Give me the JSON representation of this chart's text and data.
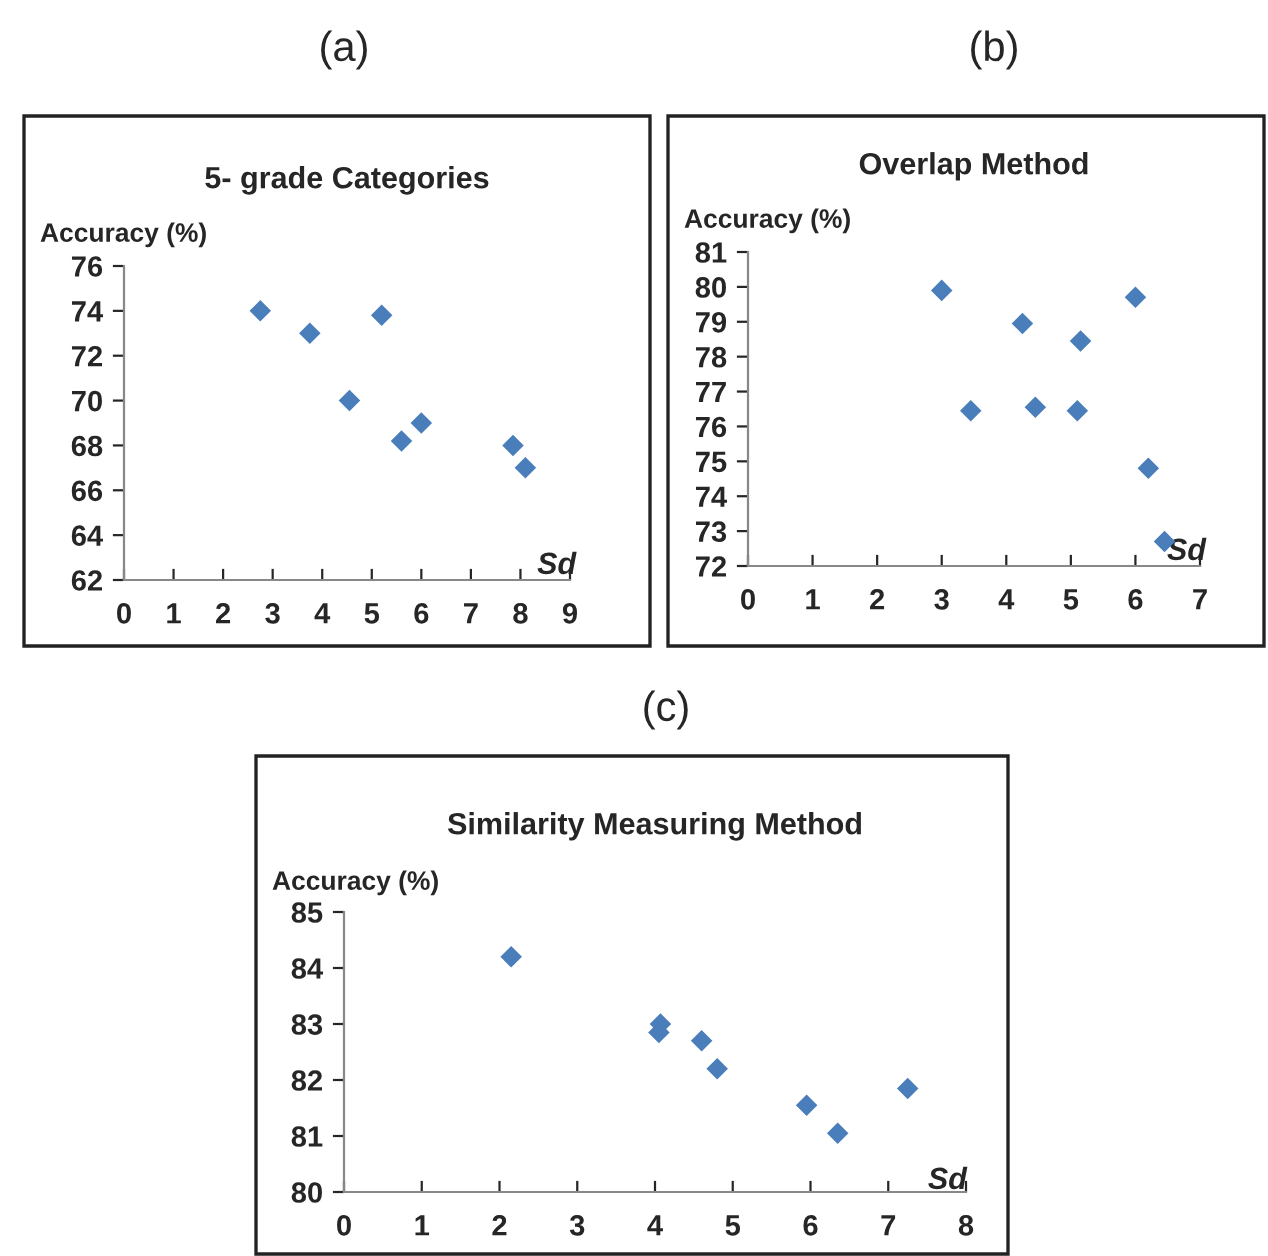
{
  "chart_data": [
    {
      "type": "scatter",
      "title": "5- grade Categories",
      "xlabel": "Sd",
      "ylabel": "Accuracy (%)",
      "annotations": [
        "(a)"
      ],
      "marker": "diamond",
      "grid": false,
      "legend": false,
      "xlim": [
        0,
        9
      ],
      "xticks": [
        0,
        1,
        2,
        3,
        4,
        5,
        6,
        7,
        8,
        9
      ],
      "ylim": [
        62,
        76
      ],
      "yticks": [
        62,
        64,
        66,
        68,
        70,
        72,
        74,
        76
      ],
      "series": [
        {
          "color": "#4a7ebb",
          "x": [
            2.75,
            3.75,
            4.55,
            5.2,
            5.6,
            6.0,
            7.85,
            8.1
          ],
          "values": [
            74.0,
            73.0,
            70.0,
            73.8,
            68.2,
            69.0,
            68.0,
            67.0
          ]
        }
      ]
    },
    {
      "type": "scatter",
      "title": "Overlap Method",
      "xlabel": "Sd",
      "ylabel": "Accuracy (%)",
      "annotations": [
        "(b)"
      ],
      "marker": "diamond",
      "grid": false,
      "legend": false,
      "xlim": [
        0,
        7
      ],
      "xticks": [
        0,
        1,
        2,
        3,
        4,
        5,
        6,
        7
      ],
      "ylim": [
        72,
        81
      ],
      "yticks": [
        72,
        73,
        74,
        75,
        76,
        77,
        78,
        79,
        80,
        81
      ],
      "series": [
        {
          "color": "#4a7ebb",
          "x": [
            3.0,
            3.45,
            4.25,
            4.45,
            5.1,
            5.15,
            6.0,
            6.2,
            6.45
          ],
          "values": [
            79.9,
            76.45,
            78.95,
            76.55,
            76.45,
            78.45,
            79.7,
            74.8,
            72.7
          ]
        }
      ]
    },
    {
      "type": "scatter",
      "title": "Similarity Measuring Method",
      "xlabel": "Sd",
      "ylabel": "Accuracy (%)",
      "annotations": [
        "(c)"
      ],
      "marker": "diamond",
      "grid": false,
      "legend": false,
      "xlim": [
        0,
        8
      ],
      "xticks": [
        0,
        1,
        2,
        3,
        4,
        5,
        6,
        7,
        8
      ],
      "ylim": [
        80,
        85
      ],
      "yticks": [
        80,
        81,
        82,
        83,
        84,
        85
      ],
      "series": [
        {
          "color": "#4a7ebb",
          "x": [
            2.15,
            4.05,
            4.07,
            4.6,
            4.8,
            5.95,
            6.35,
            7.25
          ],
          "values": [
            84.2,
            82.85,
            83.0,
            82.7,
            82.2,
            81.55,
            81.05,
            81.85
          ]
        }
      ]
    }
  ]
}
